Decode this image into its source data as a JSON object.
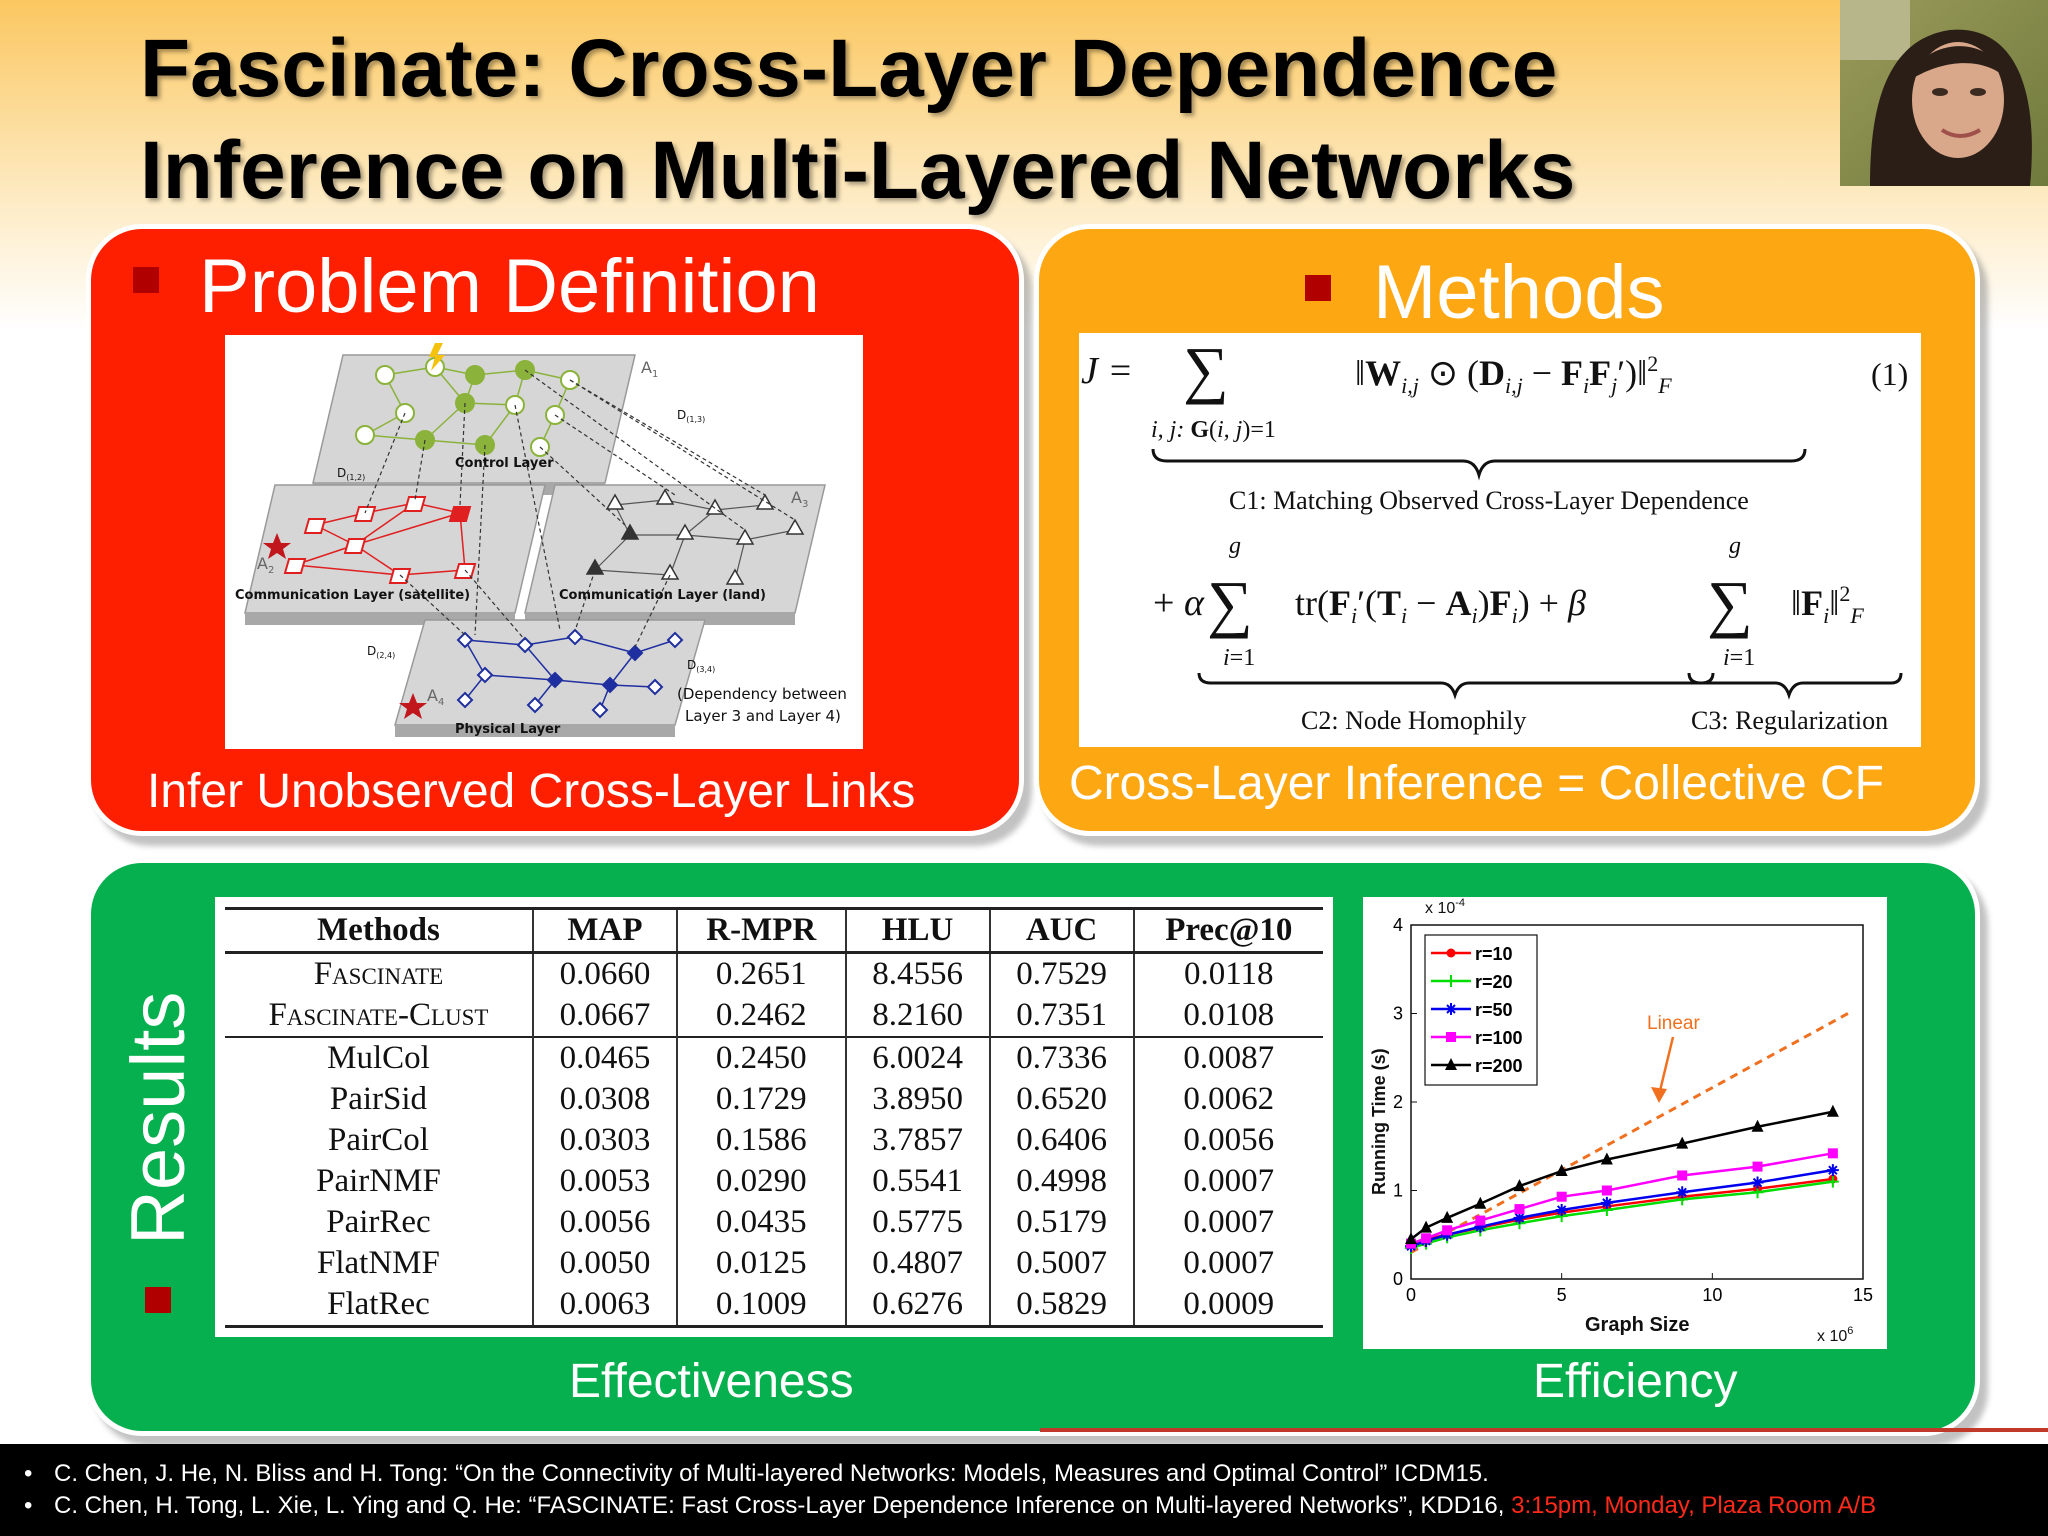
{
  "title": {
    "line1": "Fascinate: Cross-Layer Dependence",
    "line2": "Inference on Multi-Layered Networks"
  },
  "problem": {
    "title": "Problem Definition",
    "caption": "Infer Unobserved Cross-Layer Links",
    "diagram": {
      "control_layer": "Control Layer",
      "comm_sat": "Communication Layer (satellite)",
      "comm_land": "Communication Layer (land)",
      "physical": "Physical Layer",
      "a1": "A",
      "a1_sub": "1",
      "a2": "A",
      "a2_sub": "2",
      "a3": "A",
      "a3_sub": "3",
      "a4": "A",
      "a4_sub": "4",
      "d12": "D",
      "d12_sub": "(1,2)",
      "d13": "D",
      "d13_sub": "(1,3)",
      "d24": "D",
      "d24_sub": "(2,4)",
      "d34": "D",
      "d34_sub": "(3,4)",
      "dep_note1": "(Dependency between",
      "dep_note2": "Layer 3 and Layer 4)"
    }
  },
  "methods": {
    "title": "Methods",
    "caption": "Cross-Layer Inference = Collective CF",
    "c1": "C1: Matching Observed Cross-Layer Dependence",
    "c2": "C2: Node Homophily",
    "c3": "C3: Regularization",
    "eq_num": "(1)"
  },
  "results": {
    "title": "Results",
    "caption_left": "Effectiveness",
    "caption_right": "Efficiency",
    "table": {
      "headers": [
        "Methods",
        "MAP",
        "R-MPR",
        "HLU",
        "AUC",
        "Prec@10"
      ],
      "rows": [
        [
          "Fascinate",
          "0.0660",
          "0.2651",
          "8.4556",
          "0.7529",
          "0.0118"
        ],
        [
          "Fascinate-Clust",
          "0.0667",
          "0.2462",
          "8.2160",
          "0.7351",
          "0.0108"
        ],
        [
          "MulCol",
          "0.0465",
          "0.2450",
          "6.0024",
          "0.7336",
          "0.0087"
        ],
        [
          "PairSid",
          "0.0308",
          "0.1729",
          "3.8950",
          "0.6520",
          "0.0062"
        ],
        [
          "PairCol",
          "0.0303",
          "0.1586",
          "3.7857",
          "0.6406",
          "0.0056"
        ],
        [
          "PairNMF",
          "0.0053",
          "0.0290",
          "0.5541",
          "0.4998",
          "0.0007"
        ],
        [
          "PairRec",
          "0.0056",
          "0.0435",
          "0.5775",
          "0.5179",
          "0.0007"
        ],
        [
          "FlatNMF",
          "0.0050",
          "0.0125",
          "0.4807",
          "0.5007",
          "0.0007"
        ],
        [
          "FlatRec",
          "0.0063",
          "0.1009",
          "0.6276",
          "0.5829",
          "0.0009"
        ]
      ]
    }
  },
  "chart_data": {
    "type": "line",
    "xlabel": "Graph Size",
    "ylabel": "Running Time (s)",
    "x_multiplier": "x 10",
    "x_multiplier_exp": "6",
    "y_multiplier": "x 10",
    "y_multiplier_exp": "-4",
    "xlim": [
      0,
      15
    ],
    "ylim": [
      0,
      4
    ],
    "xticks": [
      "0",
      "5",
      "10",
      "15"
    ],
    "yticks": [
      "0",
      "1",
      "2",
      "3",
      "4"
    ],
    "legend_position": "top-left",
    "annotation": "Linear",
    "linear": {
      "x": [
        0,
        14.5
      ],
      "y": [
        0.3,
        3.0
      ]
    },
    "x": [
      0,
      0.5,
      1.2,
      2.3,
      3.6,
      5,
      6.5,
      9,
      11.5,
      14
    ],
    "series": [
      {
        "name": "r=10",
        "color": "#ff0000",
        "marker": "dot",
        "values": [
          0.4,
          0.45,
          0.5,
          0.58,
          0.67,
          0.75,
          0.82,
          0.93,
          1.02,
          1.13
        ]
      },
      {
        "name": "r=20",
        "color": "#00dd00",
        "marker": "plus",
        "values": [
          0.35,
          0.4,
          0.47,
          0.55,
          0.63,
          0.71,
          0.78,
          0.9,
          0.98,
          1.1
        ]
      },
      {
        "name": "r=50",
        "color": "#0000ee",
        "marker": "star",
        "values": [
          0.37,
          0.43,
          0.5,
          0.59,
          0.69,
          0.78,
          0.86,
          0.98,
          1.09,
          1.23
        ]
      },
      {
        "name": "r=100",
        "color": "#ff00ff",
        "marker": "square",
        "values": [
          0.4,
          0.46,
          0.55,
          0.66,
          0.79,
          0.93,
          1.0,
          1.17,
          1.27,
          1.42
        ]
      },
      {
        "name": "r=200",
        "color": "#000000",
        "marker": "triangle",
        "values": [
          0.45,
          0.58,
          0.69,
          0.85,
          1.05,
          1.22,
          1.35,
          1.53,
          1.72,
          1.89
        ]
      }
    ]
  },
  "footer": {
    "ref1": "C. Chen, J. He, N. Bliss and H. Tong: “On the Connectivity of Multi-layered Networks: Models, Measures and Optimal Control” ICDM15.",
    "ref2": "C. Chen, H. Tong, L. Xie, L. Ying and Q. He: “FASCINATE: Fast Cross-Layer Dependence Inference on Multi-layered Networks”, KDD16,",
    "ref2_time": "3:15pm, Monday, Plaza Room A/B"
  },
  "colors": {
    "problem_panel": "#fe1f00",
    "methods_panel": "#fda713",
    "results_panel": "#07b04f",
    "bullet": "#b00000",
    "highlight": "#ff2a1a"
  }
}
